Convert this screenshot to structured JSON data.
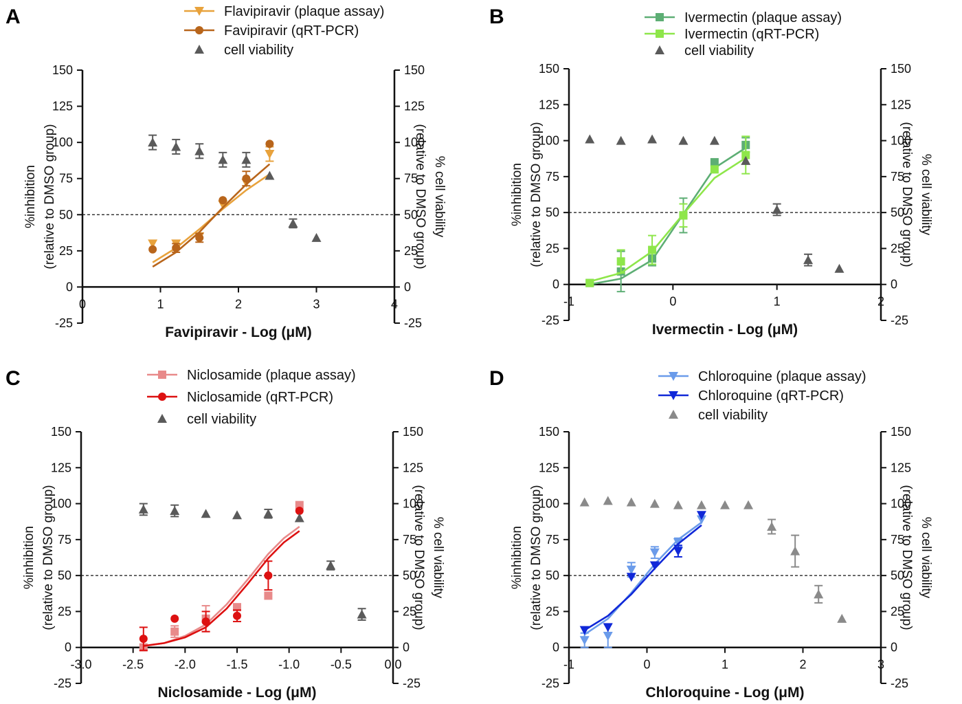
{
  "chart_data": [
    {
      "panel": "A",
      "type": "scatter",
      "xlabel": "Favipiravir - Log (μM)",
      "ylabel_left": [
        "%inhibition",
        "(relative to DMSO group)"
      ],
      "ylabel_right": [
        "% cell viability",
        "(relative to DMSO group)"
      ],
      "xlim": [
        0,
        4
      ],
      "ylim": [
        -25,
        150
      ],
      "x_ticks": [
        0,
        1,
        2,
        3,
        4
      ],
      "x_tick_labels": [
        "0",
        "1",
        "2",
        "3",
        "4"
      ],
      "y_ticks": [
        -25,
        0,
        25,
        50,
        75,
        100,
        125,
        150
      ],
      "y_tick_labels": [
        "-25",
        "0",
        "25",
        "50",
        "75",
        "100",
        "125",
        "150"
      ],
      "right_tick_labels": [
        "-25",
        "0",
        "25",
        "50",
        "75",
        "100",
        "125",
        "150"
      ],
      "reference_line": 50,
      "legend": [
        "Flavipiravir (plaque assay)",
        "Favipiravir (qRT-PCR)",
        "cell viability"
      ],
      "series": [
        {
          "name": "Flavipiravir (plaque assay)",
          "marker": "tri-down",
          "color": "#E8A23C",
          "points": [
            {
              "x": 0.9,
              "y": 30
            },
            {
              "x": 1.2,
              "y": 30
            },
            {
              "x": 1.5,
              "y": 35
            },
            {
              "x": 1.8,
              "y": 57
            },
            {
              "x": 2.1,
              "y": 72
            },
            {
              "x": 2.4,
              "y": 92,
              "err": 5
            }
          ],
          "fit": [
            {
              "x": 0.9,
              "y": 17
            },
            {
              "x": 1.2,
              "y": 27
            },
            {
              "x": 1.5,
              "y": 40
            },
            {
              "x": 1.8,
              "y": 54
            },
            {
              "x": 2.1,
              "y": 67
            },
            {
              "x": 2.4,
              "y": 78
            }
          ]
        },
        {
          "name": "Favipiravir (qRT-PCR)",
          "marker": "circle",
          "color": "#B8651B",
          "points": [
            {
              "x": 0.9,
              "y": 26
            },
            {
              "x": 1.2,
              "y": 27,
              "err": 3
            },
            {
              "x": 1.5,
              "y": 34,
              "err": 3
            },
            {
              "x": 1.8,
              "y": 60
            },
            {
              "x": 2.1,
              "y": 75,
              "err": 5
            },
            {
              "x": 2.4,
              "y": 99
            }
          ],
          "fit": [
            {
              "x": 0.9,
              "y": 14
            },
            {
              "x": 1.2,
              "y": 24
            },
            {
              "x": 1.5,
              "y": 38
            },
            {
              "x": 1.8,
              "y": 55
            },
            {
              "x": 2.1,
              "y": 71
            },
            {
              "x": 2.4,
              "y": 85
            }
          ]
        },
        {
          "name": "cell viability",
          "marker": "tri-up",
          "color": "#5a5a5a",
          "points": [
            {
              "x": 0.9,
              "y": 100,
              "err": 5
            },
            {
              "x": 1.2,
              "y": 97,
              "err": 5
            },
            {
              "x": 1.5,
              "y": 94,
              "err": 5
            },
            {
              "x": 1.8,
              "y": 88,
              "err": 5
            },
            {
              "x": 2.1,
              "y": 88,
              "err": 5
            },
            {
              "x": 2.4,
              "y": 77
            },
            {
              "x": 2.7,
              "y": 44,
              "err": 3
            },
            {
              "x": 3.0,
              "y": 34
            }
          ]
        }
      ]
    },
    {
      "panel": "B",
      "type": "scatter",
      "xlabel": "Ivermectin - Log (μM)",
      "ylabel_left": [
        "%inhibition",
        "(relative to DMSO group)"
      ],
      "ylabel_right": [
        "% cell viability",
        "(relative to DMSO group)"
      ],
      "xlim": [
        -1,
        2
      ],
      "ylim": [
        -25,
        150
      ],
      "x_ticks": [
        -1,
        0,
        1,
        2
      ],
      "x_tick_labels": [
        "-1",
        "0",
        "1",
        "2"
      ],
      "y_ticks": [
        -25,
        0,
        25,
        50,
        75,
        100,
        125,
        150
      ],
      "y_tick_labels": [
        "-25",
        "0",
        "25",
        "50",
        "75",
        "100",
        "125",
        "150"
      ],
      "right_tick_labels": [
        "-25",
        "0",
        "25",
        "50",
        "75",
        "100",
        "125",
        "150"
      ],
      "reference_line": 50,
      "legend": [
        "Ivermectin (plaque assay)",
        "Ivermectin (qRT-PCR)",
        "cell viability"
      ],
      "series": [
        {
          "name": "Ivermectin (plaque assay)",
          "marker": "square",
          "color": "#5DAE74",
          "points": [
            {
              "x": -0.8,
              "y": 1
            },
            {
              "x": -0.5,
              "y": 9,
              "err": 14
            },
            {
              "x": -0.2,
              "y": 18,
              "err": 5
            },
            {
              "x": 0.1,
              "y": 48,
              "err": 12
            },
            {
              "x": 0.4,
              "y": 85
            },
            {
              "x": 0.7,
              "y": 97,
              "err": 5
            }
          ],
          "fit": [
            {
              "x": -0.8,
              "y": 0
            },
            {
              "x": -0.5,
              "y": 4
            },
            {
              "x": -0.2,
              "y": 17
            },
            {
              "x": 0.1,
              "y": 49
            },
            {
              "x": 0.4,
              "y": 81
            },
            {
              "x": 0.7,
              "y": 95
            }
          ]
        },
        {
          "name": "Ivermectin (qRT-PCR)",
          "marker": "square",
          "color": "#8EE64A",
          "points": [
            {
              "x": -0.8,
              "y": 1
            },
            {
              "x": -0.5,
              "y": 16,
              "err": 8
            },
            {
              "x": -0.2,
              "y": 24,
              "err": 10
            },
            {
              "x": 0.1,
              "y": 48,
              "err": 8
            },
            {
              "x": 0.4,
              "y": 80
            },
            {
              "x": 0.7,
              "y": 90,
              "err": 13
            }
          ],
          "fit": [
            {
              "x": -0.8,
              "y": 2
            },
            {
              "x": -0.5,
              "y": 8
            },
            {
              "x": -0.2,
              "y": 23
            },
            {
              "x": 0.1,
              "y": 49
            },
            {
              "x": 0.4,
              "y": 74
            },
            {
              "x": 0.7,
              "y": 88
            }
          ]
        },
        {
          "name": "cell viability",
          "marker": "tri-up",
          "color": "#5a5a5a",
          "points": [
            {
              "x": -0.8,
              "y": 101
            },
            {
              "x": -0.5,
              "y": 100
            },
            {
              "x": -0.2,
              "y": 101
            },
            {
              "x": 0.1,
              "y": 100
            },
            {
              "x": 0.4,
              "y": 100
            },
            {
              "x": 0.7,
              "y": 86
            },
            {
              "x": 1.0,
              "y": 52,
              "err": 4
            },
            {
              "x": 1.3,
              "y": 17,
              "err": 4
            },
            {
              "x": 1.6,
              "y": 11
            }
          ]
        }
      ]
    },
    {
      "panel": "C",
      "type": "scatter",
      "xlabel": "Niclosamide - Log (μM)",
      "ylabel_left": [
        "%inhibition",
        "(relative to DMSO group)"
      ],
      "ylabel_right": [
        "% cell viability",
        "(relative to DMSO group)"
      ],
      "xlim": [
        -3.0,
        0.0
      ],
      "ylim": [
        -25,
        150
      ],
      "x_ticks": [
        -3.0,
        -2.5,
        -2.0,
        -1.5,
        -1.0,
        -0.5,
        0.0
      ],
      "x_tick_labels": [
        "-3.0",
        "-2.5",
        "-2.0",
        "-1.5",
        "-1.0",
        "-0.5",
        "0.0"
      ],
      "y_ticks": [
        -25,
        0,
        25,
        50,
        75,
        100,
        125,
        150
      ],
      "y_tick_labels": [
        "-25",
        "0",
        "25",
        "50",
        "75",
        "100",
        "125",
        "150"
      ],
      "right_tick_labels": [
        "-25",
        "0",
        "25",
        "50",
        "75",
        "100",
        "125",
        "150"
      ],
      "reference_line": 50,
      "legend": [
        "Niclosamide (plaque assay)",
        "Niclosamide (qRT-PCR)",
        "cell viability"
      ],
      "series": [
        {
          "name": "Niclosamide (plaque assay)",
          "marker": "square",
          "color": "#E88A8A",
          "points": [
            {
              "x": -2.4,
              "y": 0
            },
            {
              "x": -2.1,
              "y": 11,
              "err": 4
            },
            {
              "x": -1.8,
              "y": 20,
              "err": 9
            },
            {
              "x": -1.5,
              "y": 28
            },
            {
              "x": -1.2,
              "y": 36
            },
            {
              "x": -0.9,
              "y": 99
            }
          ],
          "fit": [
            {
              "x": -2.4,
              "y": 1
            },
            {
              "x": -2.2,
              "y": 3
            },
            {
              "x": -2.0,
              "y": 8
            },
            {
              "x": -1.8,
              "y": 16
            },
            {
              "x": -1.6,
              "y": 30
            },
            {
              "x": -1.4,
              "y": 47
            },
            {
              "x": -1.2,
              "y": 65
            },
            {
              "x": -1.05,
              "y": 76
            },
            {
              "x": -0.9,
              "y": 84
            }
          ]
        },
        {
          "name": "Niclosamide (qRT-PCR)",
          "marker": "circle",
          "color": "#DD1111",
          "points": [
            {
              "x": -2.4,
              "y": 6,
              "err": 8
            },
            {
              "x": -2.1,
              "y": 20
            },
            {
              "x": -1.8,
              "y": 18,
              "err": 7
            },
            {
              "x": -1.5,
              "y": 22,
              "err": 4
            },
            {
              "x": -1.2,
              "y": 50,
              "err": 10
            },
            {
              "x": -0.9,
              "y": 95
            }
          ],
          "fit": [
            {
              "x": -2.4,
              "y": 1
            },
            {
              "x": -2.2,
              "y": 3
            },
            {
              "x": -2.0,
              "y": 7
            },
            {
              "x": -1.8,
              "y": 14
            },
            {
              "x": -1.6,
              "y": 27
            },
            {
              "x": -1.4,
              "y": 44
            },
            {
              "x": -1.2,
              "y": 62
            },
            {
              "x": -1.05,
              "y": 73
            },
            {
              "x": -0.9,
              "y": 81
            }
          ]
        },
        {
          "name": "cell viability",
          "marker": "tri-up",
          "color": "#5a5a5a",
          "points": [
            {
              "x": -2.4,
              "y": 96,
              "err": 4
            },
            {
              "x": -2.1,
              "y": 95,
              "err": 4
            },
            {
              "x": -1.8,
              "y": 93
            },
            {
              "x": -1.5,
              "y": 92
            },
            {
              "x": -1.2,
              "y": 93,
              "err": 3
            },
            {
              "x": -0.9,
              "y": 90
            },
            {
              "x": -0.6,
              "y": 57,
              "err": 3
            },
            {
              "x": -0.3,
              "y": 23,
              "err": 4
            }
          ]
        }
      ]
    },
    {
      "panel": "D",
      "type": "scatter",
      "xlabel": "Chloroquine - Log (μM)",
      "ylabel_left": [
        "%inhibition",
        "(relative to DMSO group)"
      ],
      "ylabel_right": [
        "% cell viability",
        "(relative to DMSO group)"
      ],
      "xlim": [
        -1,
        3
      ],
      "ylim": [
        -25,
        150
      ],
      "x_ticks": [
        -1,
        0,
        1,
        2,
        3
      ],
      "x_tick_labels": [
        "-1",
        "0",
        "1",
        "2",
        "3"
      ],
      "y_ticks": [
        -25,
        0,
        25,
        50,
        75,
        100,
        125,
        150
      ],
      "y_tick_labels": [
        "-25",
        "0",
        "25",
        "50",
        "75",
        "100",
        "125",
        "150"
      ],
      "right_tick_labels": [
        "-25",
        "0",
        "25",
        "50",
        "75",
        "100",
        "125",
        "150"
      ],
      "reference_line": 50,
      "legend": [
        "Chloroquine (plaque assay)",
        "Chloroquine (qRT-PCR)",
        "cell viability"
      ],
      "series": [
        {
          "name": "Chloroquine (plaque assay)",
          "marker": "tri-down",
          "color": "#6A9BEA",
          "points": [
            {
              "x": -0.8,
              "y": 5,
              "err": 5
            },
            {
              "x": -0.5,
              "y": 8,
              "err": 8
            },
            {
              "x": -0.2,
              "y": 54,
              "err": 5
            },
            {
              "x": 0.1,
              "y": 66,
              "err": 4
            },
            {
              "x": 0.4,
              "y": 73,
              "err": 3
            },
            {
              "x": 0.7,
              "y": 89
            }
          ],
          "fit": [
            {
              "x": -0.8,
              "y": 9
            },
            {
              "x": -0.5,
              "y": 20
            },
            {
              "x": -0.2,
              "y": 38
            },
            {
              "x": 0.1,
              "y": 58
            },
            {
              "x": 0.4,
              "y": 75
            },
            {
              "x": 0.7,
              "y": 87
            }
          ]
        },
        {
          "name": "Chloroquine (qRT-PCR)",
          "marker": "tri-down",
          "color": "#1028D8",
          "points": [
            {
              "x": -0.8,
              "y": 12
            },
            {
              "x": -0.5,
              "y": 14
            },
            {
              "x": -0.2,
              "y": 49
            },
            {
              "x": 0.1,
              "y": 57
            },
            {
              "x": 0.4,
              "y": 67,
              "err": 4
            },
            {
              "x": 0.7,
              "y": 92
            }
          ],
          "fit": [
            {
              "x": -0.8,
              "y": 12
            },
            {
              "x": -0.5,
              "y": 22
            },
            {
              "x": -0.2,
              "y": 37
            },
            {
              "x": 0.1,
              "y": 55
            },
            {
              "x": 0.4,
              "y": 72
            },
            {
              "x": 0.7,
              "y": 85
            }
          ]
        },
        {
          "name": "cell viability",
          "marker": "tri-up",
          "color": "#8a8a8a",
          "points": [
            {
              "x": -0.8,
              "y": 101
            },
            {
              "x": -0.5,
              "y": 102
            },
            {
              "x": -0.2,
              "y": 101
            },
            {
              "x": 0.1,
              "y": 100
            },
            {
              "x": 0.4,
              "y": 99
            },
            {
              "x": 0.7,
              "y": 99
            },
            {
              "x": 1.0,
              "y": 99
            },
            {
              "x": 1.3,
              "y": 99
            },
            {
              "x": 1.6,
              "y": 84,
              "err": 5
            },
            {
              "x": 1.9,
              "y": 67,
              "err": 11
            },
            {
              "x": 2.2,
              "y": 37,
              "err": 6
            },
            {
              "x": 2.5,
              "y": 20
            }
          ]
        }
      ]
    }
  ]
}
